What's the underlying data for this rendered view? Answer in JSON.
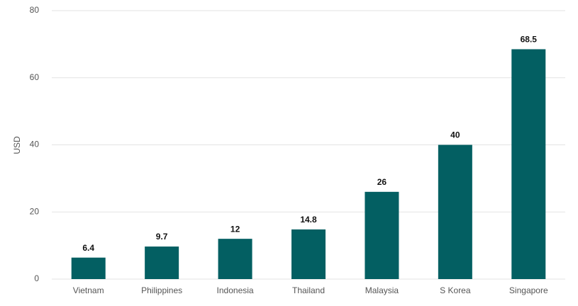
{
  "chart_data": {
    "type": "bar",
    "y_label": "USD",
    "categories": [
      "Vietnam",
      "Philippines",
      "Indonesia",
      "Thailand",
      "Malaysia",
      "S Korea",
      "Singapore"
    ],
    "values": [
      6.4,
      9.7,
      12,
      14.8,
      26,
      40,
      68.5
    ],
    "color": "#035f62",
    "ylim": [
      0,
      80
    ],
    "yticks": [
      0,
      20,
      40,
      60,
      80
    ],
    "grid": true,
    "data_labels": true
  }
}
